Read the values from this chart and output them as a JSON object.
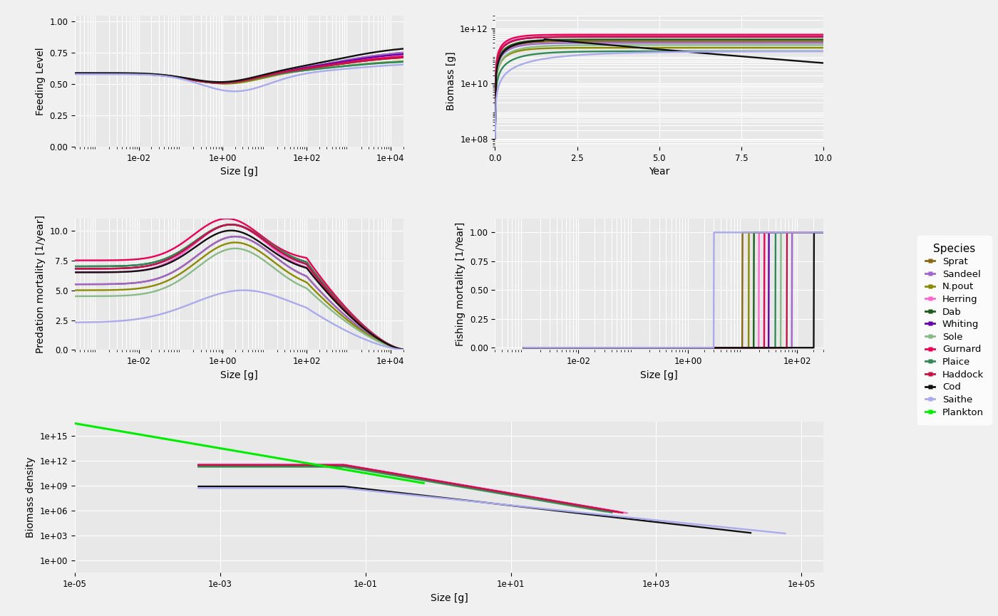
{
  "species": [
    "Sprat",
    "Sandeel",
    "N.pout",
    "Herring",
    "Dab",
    "Whiting",
    "Sole",
    "Gurnard",
    "Plaice",
    "Haddock",
    "Cod",
    "Saithe",
    "Plankton"
  ],
  "colors": {
    "Sprat": "#8B6914",
    "Sandeel": "#A066CC",
    "N.pout": "#8B8B00",
    "Herring": "#FF66CC",
    "Dab": "#1A5C1A",
    "Whiting": "#6600AA",
    "Sole": "#88BB88",
    "Gurnard": "#EE0055",
    "Plaice": "#2E8B57",
    "Haddock": "#CC1144",
    "Cod": "#111111",
    "Saithe": "#AAAAEE",
    "Plankton": "#00EE00"
  },
  "background_color": "#E8E8E8",
  "grid_color": "#FFFFFF",
  "fig_bg": "#F0F0F0"
}
